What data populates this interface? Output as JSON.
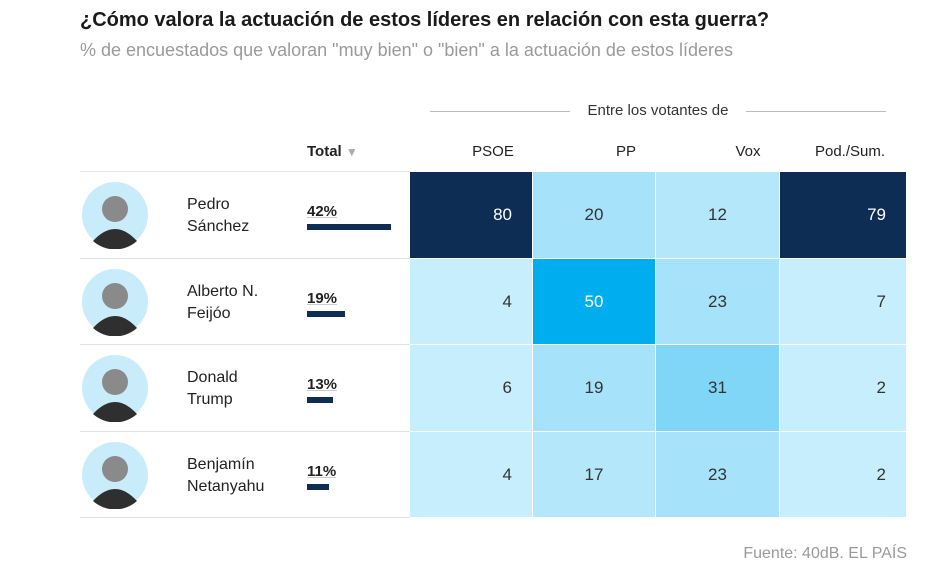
{
  "header": {
    "title": "¿Cómo valora la actuación de estos líderes en relación con esta guerra?",
    "subtitle": "% de encuestados que valoran \"muy bien\" o \"bien\" a la actuación de estos líderes"
  },
  "table": {
    "group_header": "Entre los votantes de",
    "total_header": "Total",
    "sort_indicator": "▼",
    "columns": [
      "PSOE",
      "PP",
      "Vox",
      "Pod./Sum."
    ],
    "rows": [
      {
        "name": [
          "Pedro",
          "Sánchez"
        ],
        "total": {
          "value": 42,
          "label": "42%"
        },
        "values": [
          80,
          20,
          12,
          79
        ]
      },
      {
        "name": [
          "Alberto N.",
          "Feijóo"
        ],
        "total": {
          "value": 19,
          "label": "19%"
        },
        "values": [
          4,
          50,
          23,
          7
        ]
      },
      {
        "name": [
          "Donald",
          "Trump"
        ],
        "total": {
          "value": 13,
          "label": "13%"
        },
        "values": [
          6,
          19,
          31,
          2
        ]
      },
      {
        "name": [
          "Benjamín",
          "Netanyahu"
        ],
        "total": {
          "value": 11,
          "label": "11%"
        },
        "values": [
          4,
          17,
          23,
          2
        ]
      }
    ]
  },
  "footer": {
    "source": "Fuente: 40dB. EL PAÍS"
  }
}
